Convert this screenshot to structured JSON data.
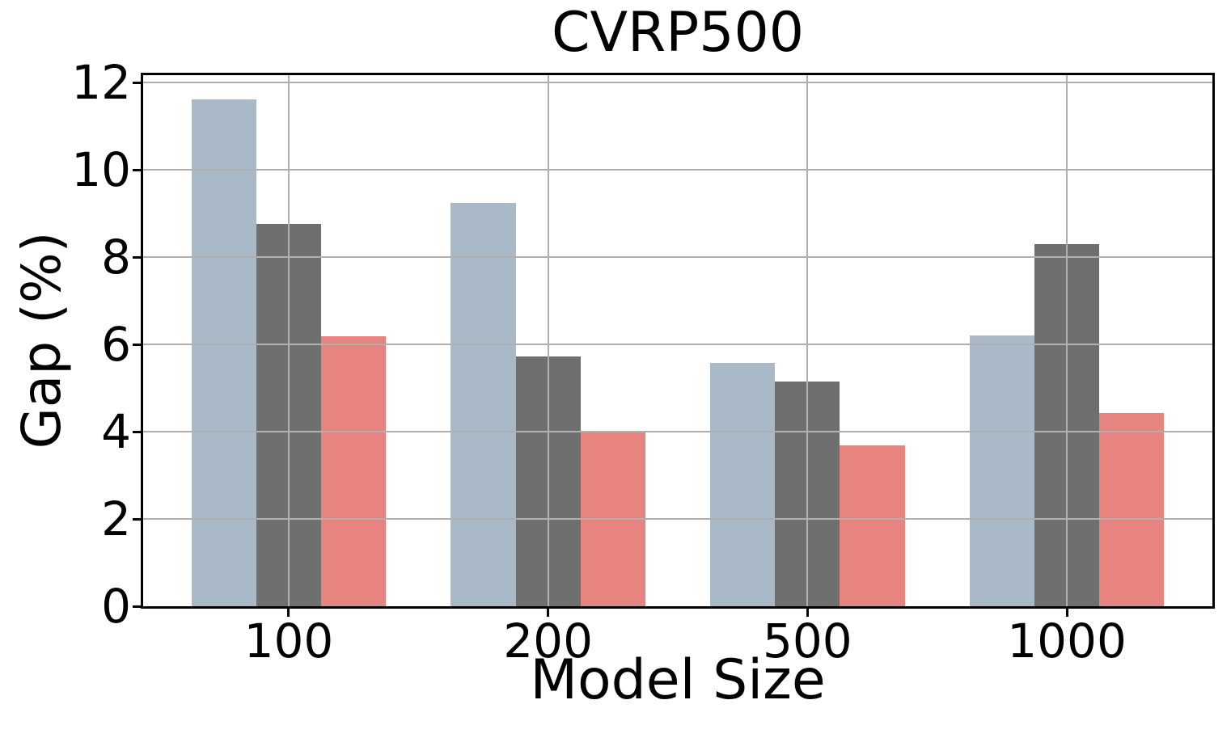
{
  "chart_data": {
    "type": "bar",
    "title": "CVRP500",
    "xlabel": "Model Size",
    "ylabel": "Gap (%)",
    "categories": [
      "100",
      "200",
      "500",
      "1000"
    ],
    "series": [
      {
        "name": "blue-gray",
        "color": "#aab9c8",
        "values": [
          11.62,
          9.25,
          5.57,
          6.21
        ]
      },
      {
        "name": "dark-gray",
        "color": "#6f6f6f",
        "values": [
          8.77,
          5.72,
          5.15,
          8.29
        ]
      },
      {
        "name": "salmon-red",
        "color": "#e8847f",
        "values": [
          6.19,
          4.02,
          3.69,
          4.43
        ]
      }
    ],
    "y_ticks": [
      0,
      2,
      4,
      6,
      8,
      10,
      12
    ],
    "ylim": [
      0,
      12.17
    ],
    "xlabel_note": "",
    "grid": true,
    "grid_color": "#b0b0b0",
    "grid_on_top": true,
    "legend_position": "none",
    "bar_width_category_units": 0.25
  }
}
